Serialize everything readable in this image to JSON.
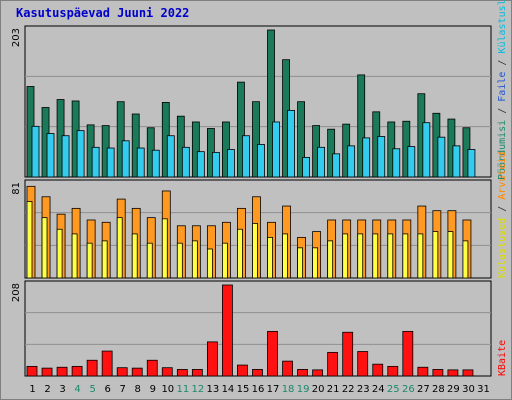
{
  "title": "Kasutuspäevad Juuni 2022",
  "legend_right": {
    "panel1": [
      {
        "text": "Pöördumisi",
        "color": "#1a8a6a"
      },
      {
        "text": " / ",
        "color": "#333333"
      },
      {
        "text": "Faile",
        "color": "#2255cc"
      },
      {
        "text": " / ",
        "color": "#333333"
      },
      {
        "text": "Külastuslehti",
        "color": "#00bbdd"
      }
    ],
    "panel2": [
      {
        "text": "Külastused",
        "color": "#dddd00"
      },
      {
        "text": " / ",
        "color": "#333333"
      },
      {
        "text": "Arvuteid",
        "color": "#ff8800"
      }
    ],
    "panel3": [
      {
        "text": "KBaite",
        "color": "#ff0000"
      }
    ]
  },
  "colors": {
    "hits": "#1a7a5a",
    "files": "#33ccee",
    "visits": "#ffff44",
    "sites": "#ff9922",
    "kbytes": "#ff1111",
    "plot_bg": "#c0c0c0",
    "grid": "#909090",
    "weekend_label": "#1a8a6a",
    "weekday_label": "#000000"
  },
  "chart_data": [
    {
      "type": "bar",
      "title": "",
      "ylabel": "203",
      "ylim": [
        0,
        203
      ],
      "grid": true,
      "categories": [
        "1",
        "2",
        "3",
        "4",
        "5",
        "6",
        "7",
        "8",
        "9",
        "10",
        "11",
        "12",
        "13",
        "14",
        "15",
        "16",
        "17",
        "18",
        "19",
        "20",
        "21",
        "22",
        "23",
        "24",
        "25",
        "26",
        "27",
        "28",
        "29",
        "30",
        "31"
      ],
      "series": [
        {
          "name": "Pöördumisi",
          "values": [
            125,
            96,
            107,
            105,
            72,
            71,
            104,
            87,
            68,
            103,
            84,
            76,
            67,
            76,
            131,
            104,
            203,
            162,
            104,
            71,
            66,
            73,
            141,
            90,
            76,
            77,
            115,
            88,
            80,
            68,
            0
          ]
        },
        {
          "name": "Faile",
          "values": [
            0,
            0,
            0,
            0,
            0,
            0,
            0,
            0,
            0,
            0,
            0,
            0,
            0,
            0,
            0,
            0,
            0,
            0,
            0,
            0,
            0,
            0,
            0,
            0,
            0,
            0,
            0,
            0,
            0,
            0,
            0
          ]
        },
        {
          "name": "Külastuslehti",
          "values": [
            70,
            60,
            57,
            64,
            41,
            40,
            50,
            40,
            37,
            57,
            41,
            35,
            34,
            38,
            57,
            45,
            76,
            92,
            27,
            41,
            32,
            43,
            54,
            56,
            39,
            42,
            75,
            55,
            43,
            38,
            0
          ]
        }
      ]
    },
    {
      "type": "bar",
      "title": "",
      "ylabel": "81",
      "ylim": [
        0,
        81
      ],
      "grid": true,
      "categories": [
        "1",
        "2",
        "3",
        "4",
        "5",
        "6",
        "7",
        "8",
        "9",
        "10",
        "11",
        "12",
        "13",
        "14",
        "15",
        "16",
        "17",
        "18",
        "19",
        "20",
        "21",
        "22",
        "23",
        "24",
        "25",
        "26",
        "27",
        "28",
        "29",
        "30",
        "31"
      ],
      "series": [
        {
          "name": "Arvuteid",
          "values": [
            79,
            70,
            55,
            60,
            50,
            48,
            68,
            60,
            52,
            75,
            45,
            45,
            45,
            48,
            60,
            70,
            48,
            62,
            35,
            40,
            50,
            50,
            50,
            50,
            50,
            50,
            62,
            58,
            58,
            50,
            0
          ]
        },
        {
          "name": "Külastused",
          "values": [
            66,
            52,
            42,
            38,
            30,
            32,
            52,
            38,
            30,
            51,
            30,
            32,
            25,
            30,
            42,
            47,
            35,
            38,
            26,
            26,
            32,
            38,
            38,
            38,
            38,
            38,
            38,
            40,
            40,
            32,
            0
          ]
        }
      ]
    },
    {
      "type": "bar",
      "title": "",
      "ylabel": "208",
      "ylim": [
        0,
        208
      ],
      "grid": true,
      "categories": [
        "1",
        "2",
        "3",
        "4",
        "5",
        "6",
        "7",
        "8",
        "9",
        "10",
        "11",
        "12",
        "13",
        "14",
        "15",
        "16",
        "17",
        "18",
        "19",
        "20",
        "21",
        "22",
        "23",
        "24",
        "25",
        "26",
        "27",
        "28",
        "29",
        "30",
        "31"
      ],
      "series": [
        {
          "name": "KBaite",
          "values": [
            22,
            18,
            20,
            22,
            36,
            57,
            19,
            18,
            36,
            19,
            15,
            15,
            78,
            208,
            25,
            15,
            102,
            34,
            15,
            14,
            54,
            100,
            56,
            27,
            22,
            102,
            20,
            15,
            14,
            14,
            0
          ]
        }
      ]
    }
  ],
  "day_labels": [
    {
      "text": "1",
      "weekend": false
    },
    {
      "text": "2",
      "weekend": false
    },
    {
      "text": "3",
      "weekend": false
    },
    {
      "text": "4",
      "weekend": true
    },
    {
      "text": "5",
      "weekend": true
    },
    {
      "text": "6",
      "weekend": false
    },
    {
      "text": "7",
      "weekend": false
    },
    {
      "text": "8",
      "weekend": false
    },
    {
      "text": "9",
      "weekend": false
    },
    {
      "text": "10",
      "weekend": false
    },
    {
      "text": "11",
      "weekend": true
    },
    {
      "text": "12",
      "weekend": true
    },
    {
      "text": "13",
      "weekend": false
    },
    {
      "text": "14",
      "weekend": false
    },
    {
      "text": "15",
      "weekend": false
    },
    {
      "text": "16",
      "weekend": false
    },
    {
      "text": "17",
      "weekend": false
    },
    {
      "text": "18",
      "weekend": true
    },
    {
      "text": "19",
      "weekend": true
    },
    {
      "text": "20",
      "weekend": false
    },
    {
      "text": "21",
      "weekend": false
    },
    {
      "text": "22",
      "weekend": false
    },
    {
      "text": "23",
      "weekend": false
    },
    {
      "text": "24",
      "weekend": false
    },
    {
      "text": "25",
      "weekend": true
    },
    {
      "text": "26",
      "weekend": true
    },
    {
      "text": "27",
      "weekend": false
    },
    {
      "text": "28",
      "weekend": false
    },
    {
      "text": "29",
      "weekend": false
    },
    {
      "text": "30",
      "weekend": false
    },
    {
      "text": "31",
      "weekend": false
    }
  ]
}
